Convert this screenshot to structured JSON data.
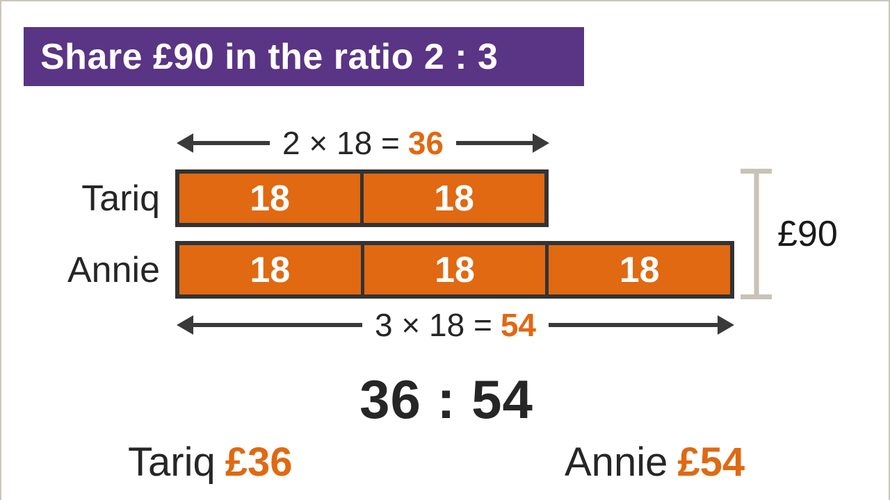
{
  "title": "Share £90 in the ratio 2 : 3",
  "top_arrow": {
    "expression": "2 × 18 =",
    "result": "36"
  },
  "bottom_arrow": {
    "expression": "3 × 18 =",
    "result": "54"
  },
  "rows": [
    {
      "label": "Tariq",
      "segments": [
        "18",
        "18"
      ]
    },
    {
      "label": "Annie",
      "segments": [
        "18",
        "18",
        "18"
      ]
    }
  ],
  "bracket_label": "£90",
  "ratio_result": "36 : 54",
  "allocations": [
    {
      "name": "Tariq",
      "amount": "£36"
    },
    {
      "name": "Annie",
      "amount": "£54"
    }
  ],
  "colors": {
    "banner_purple": "#5a3485",
    "bar_orange": "#e06912",
    "accent_orange_text": "#e06912",
    "bar_border": "#333333",
    "arrow_dark": "#3a3a3a",
    "bracket_gray": "#c9c2b6",
    "text_dark": "#262626",
    "page_border": "#ccc5bc",
    "background": "#ffffff"
  }
}
